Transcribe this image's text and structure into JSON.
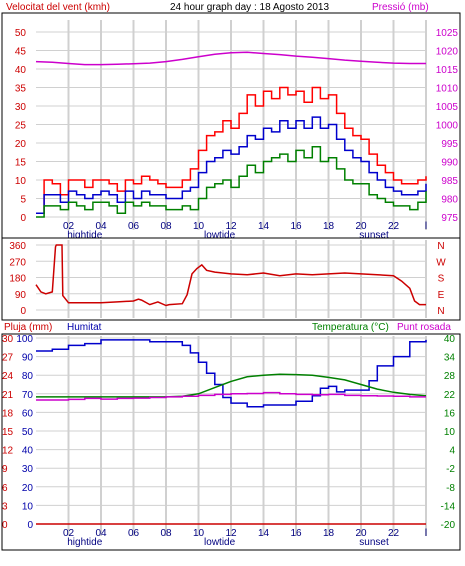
{
  "header": {
    "wind_label": "Velocitat del vent (kmh)",
    "title": "24 hour graph day : 18 Agosto 2013",
    "pressure_label": "Pressió (mb)"
  },
  "x_labels": [
    "02",
    "04",
    "06",
    "08",
    "10",
    "12",
    "14",
    "16",
    "18",
    "20",
    "22",
    "l"
  ],
  "event_labels": [
    {
      "text": "hightide",
      "x": 3
    },
    {
      "text": "lowtide",
      "x": 11.3
    },
    {
      "text": "sunset",
      "x": 20.8
    }
  ],
  "panel2_bottom_labels": {
    "events": [
      {
        "text": "hightide",
        "x": 3
      },
      {
        "text": "lowtide",
        "x": 11.3
      },
      {
        "text": "sunset",
        "x": 20.8
      }
    ]
  },
  "panel3_header": {
    "rain_label": "Pluja (mm)",
    "humidity_label": "Humitat",
    "temp_label": "Temperatura (°C)",
    "dew_label": "Punt rosada"
  },
  "colors": {
    "wind_max": "#ff0000",
    "wind_avg": "#0000cc",
    "wind_min": "#008000",
    "pressure": "#cc00cc",
    "direction": "#cc0000",
    "humidity": "#0000cc",
    "temperature": "#008000",
    "dewpoint": "#cc00cc",
    "rain": "#cc0000",
    "grid": "#d0d0d0"
  },
  "chart_data": [
    {
      "type": "line",
      "title": "24 hour graph day : 18 Agosto 2013",
      "ylabel": "Velocitat del vent (kmh)",
      "ylabel_right": "Pressió (mb)",
      "x_range": [
        0,
        24
      ],
      "ylim": [
        0,
        50
      ],
      "ylim_right": [
        975,
        1025
      ],
      "y_ticks": [
        0,
        5,
        10,
        15,
        20,
        25,
        30,
        35,
        40,
        45,
        50
      ],
      "y_ticks_right": [
        975,
        980,
        985,
        990,
        995,
        1000,
        1005,
        1010,
        1015,
        1020,
        1025
      ],
      "series": [
        {
          "role": "wind_max",
          "x": [
            0,
            0.5,
            1,
            1.5,
            2,
            2.5,
            3,
            3.5,
            4,
            4.5,
            5,
            5.5,
            6,
            6.5,
            7,
            7.5,
            8,
            8.5,
            9,
            9.5,
            10,
            10.5,
            11,
            11.5,
            12,
            12.5,
            13,
            13.5,
            14,
            14.5,
            15,
            15.5,
            16,
            16.5,
            17,
            17.5,
            18,
            18.5,
            19,
            19.5,
            20,
            20.5,
            21,
            21.5,
            22,
            22.5,
            23,
            23.5,
            24
          ],
          "y": [
            1,
            10,
            9,
            6,
            10,
            10,
            8,
            10,
            10,
            9,
            7,
            10,
            9,
            11,
            10,
            9,
            8,
            8,
            10,
            13,
            18,
            22,
            23,
            26,
            24,
            28,
            33,
            30,
            34,
            32,
            35,
            33,
            34,
            31,
            35,
            32,
            33,
            28,
            24,
            22,
            21,
            17,
            14,
            12,
            10,
            9,
            9,
            10,
            11
          ]
        },
        {
          "role": "wind_avg",
          "x": [
            0,
            0.5,
            1,
            1.5,
            2,
            2.5,
            3,
            3.5,
            4,
            4.5,
            5,
            5.5,
            6,
            6.5,
            7,
            7.5,
            8,
            8.5,
            9,
            9.5,
            10,
            10.5,
            11,
            11.5,
            12,
            12.5,
            13,
            13.5,
            14,
            14.5,
            15,
            15.5,
            16,
            16.5,
            17,
            17.5,
            18,
            18.5,
            19,
            19.5,
            20,
            20.5,
            21,
            21.5,
            22,
            22.5,
            23,
            23.5,
            24
          ],
          "y": [
            1,
            6,
            6,
            4,
            7,
            6,
            5,
            6,
            7,
            6,
            4,
            7,
            5,
            7,
            6,
            6,
            5,
            5,
            7,
            8,
            12,
            15,
            16,
            18,
            17,
            19,
            22,
            21,
            24,
            23,
            26,
            24,
            26,
            24,
            27,
            24,
            25,
            21,
            18,
            16,
            15,
            12,
            10,
            8,
            7,
            6,
            6,
            7,
            9
          ]
        },
        {
          "role": "wind_min",
          "x": [
            0,
            0.5,
            1,
            1.5,
            2,
            2.5,
            3,
            3.5,
            4,
            4.5,
            5,
            5.5,
            6,
            6.5,
            7,
            7.5,
            8,
            8.5,
            9,
            9.5,
            10,
            10.5,
            11,
            11.5,
            12,
            12.5,
            13,
            13.5,
            14,
            14.5,
            15,
            15.5,
            16,
            16.5,
            17,
            17.5,
            18,
            18.5,
            19,
            19.5,
            20,
            20.5,
            21,
            21.5,
            22,
            22.5,
            23,
            23.5,
            24
          ],
          "y": [
            0,
            3,
            3,
            2,
            4,
            3,
            2,
            4,
            4,
            3,
            1,
            4,
            3,
            4,
            3,
            3,
            2,
            2,
            3,
            2,
            5,
            8,
            9,
            10,
            8,
            11,
            14,
            12,
            15,
            16,
            17,
            15,
            18,
            16,
            19,
            15,
            16,
            13,
            10,
            9,
            9,
            6,
            5,
            4,
            3,
            3,
            2,
            4,
            7
          ]
        },
        {
          "role": "pressure",
          "x": [
            0,
            1,
            2,
            3,
            4,
            5,
            6,
            7,
            8,
            9,
            10,
            11,
            12,
            13,
            14,
            15,
            16,
            17,
            18,
            19,
            20,
            21,
            22,
            23,
            24
          ],
          "y": [
            1017,
            1016.8,
            1016.5,
            1016.2,
            1016.2,
            1016.3,
            1016.4,
            1016.6,
            1017,
            1017.6,
            1018.3,
            1019,
            1019.4,
            1019.5,
            1019.2,
            1018.9,
            1018.5,
            1018.2,
            1017.8,
            1017.4,
            1017.1,
            1016.8,
            1016.6,
            1016.5,
            1016.5
          ]
        }
      ]
    },
    {
      "type": "line",
      "ylim": [
        0,
        360
      ],
      "y_ticks": [
        0,
        90,
        180,
        270,
        360
      ],
      "y_ticks_right": [
        "N",
        "E",
        "S",
        "W",
        "N"
      ],
      "series": [
        {
          "role": "wind_direction",
          "x": [
            0,
            0.3,
            0.6,
            1,
            1.2,
            1.25,
            1.6,
            1.65,
            2,
            3,
            4,
            5,
            6,
            6.3,
            6.5,
            7,
            7.5,
            8,
            8.2,
            9,
            9.3,
            9.6,
            9.9,
            10.2,
            10.5,
            11,
            12,
            13,
            14,
            15,
            16,
            17,
            18,
            19,
            20,
            21,
            22,
            22.5,
            23,
            23.3,
            23.6,
            24
          ],
          "y": [
            140,
            100,
            90,
            100,
            350,
            360,
            360,
            80,
            40,
            40,
            40,
            45,
            50,
            60,
            55,
            30,
            45,
            25,
            30,
            35,
            85,
            200,
            230,
            250,
            220,
            210,
            200,
            195,
            205,
            190,
            200,
            195,
            200,
            205,
            200,
            195,
            190,
            160,
            120,
            50,
            30,
            30
          ]
        }
      ]
    },
    {
      "type": "line",
      "ylim": [
        0,
        100
      ],
      "ylim_rain": [
        0,
        30
      ],
      "ylim_temp": [
        -20,
        40
      ],
      "y_ticks_humidity": [
        0,
        10,
        20,
        30,
        40,
        50,
        60,
        70,
        80,
        90,
        100
      ],
      "y_ticks_rain": [
        0,
        3,
        6,
        9,
        12,
        15,
        18,
        21,
        24,
        27,
        30
      ],
      "y_ticks_temp": [
        -20,
        -14,
        -8,
        -2,
        4,
        10,
        16,
        22,
        28,
        34,
        40
      ],
      "series": [
        {
          "role": "humidity",
          "x": [
            0,
            1,
            2,
            3,
            4,
            5,
            6,
            7,
            8,
            9,
            9.5,
            10,
            10.5,
            11,
            11.5,
            12,
            13,
            14,
            15,
            16,
            17,
            17.5,
            18,
            18.5,
            19,
            20,
            20.5,
            21,
            22,
            23,
            24
          ],
          "y": [
            93,
            94,
            96,
            97,
            99,
            99,
            99,
            98,
            98,
            96,
            92,
            87,
            81,
            75,
            68,
            65,
            63,
            64,
            64,
            66,
            69,
            73,
            74,
            71,
            72,
            72,
            77,
            85,
            90,
            98,
            99
          ]
        },
        {
          "role": "temperature",
          "x": [
            0,
            2,
            4,
            6,
            8,
            9,
            10,
            11,
            12,
            13,
            14,
            15,
            16,
            17,
            18,
            19,
            20,
            21,
            22,
            23,
            24
          ],
          "y": [
            21,
            21,
            21,
            21,
            21,
            21.2,
            22,
            24,
            26,
            27.5,
            28,
            28.3,
            28.2,
            28,
            27.3,
            26.5,
            25,
            23.5,
            22.5,
            21.8,
            21.4
          ]
        },
        {
          "role": "dewpoint",
          "x": [
            0,
            1,
            2,
            3,
            4,
            5,
            6,
            7,
            8,
            9,
            10,
            11,
            12,
            13,
            14,
            15,
            16,
            17,
            18,
            19,
            20,
            21,
            22,
            23,
            24
          ],
          "y": [
            20,
            20,
            20.2,
            20.5,
            20.3,
            20.5,
            20.6,
            20.8,
            21,
            21.2,
            21.5,
            21.8,
            22,
            22.1,
            22.4,
            22,
            21.8,
            21.7,
            21.8,
            21.5,
            21.4,
            21.3,
            21.2,
            21,
            21
          ]
        },
        {
          "role": "rain",
          "x": [
            0,
            24
          ],
          "y": [
            0,
            0
          ]
        }
      ]
    }
  ]
}
